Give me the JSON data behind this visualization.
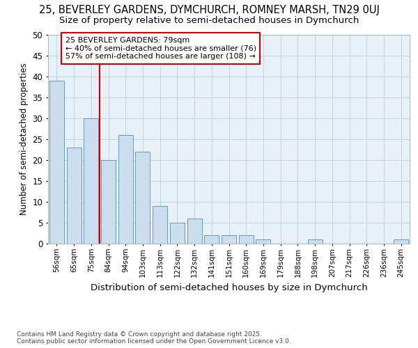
{
  "title1": "25, BEVERLEY GARDENS, DYMCHURCH, ROMNEY MARSH, TN29 0UJ",
  "title2": "Size of property relative to semi-detached houses in Dymchurch",
  "xlabel": "Distribution of semi-detached houses by size in Dymchurch",
  "ylabel": "Number of semi-detached properties",
  "categories": [
    "56sqm",
    "65sqm",
    "75sqm",
    "84sqm",
    "94sqm",
    "103sqm",
    "113sqm",
    "122sqm",
    "132sqm",
    "141sqm",
    "151sqm",
    "160sqm",
    "169sqm",
    "179sqm",
    "188sqm",
    "198sqm",
    "207sqm",
    "217sqm",
    "226sqm",
    "236sqm",
    "245sqm"
  ],
  "values": [
    39,
    23,
    30,
    20,
    26,
    22,
    9,
    5,
    6,
    2,
    2,
    2,
    1,
    0,
    0,
    1,
    0,
    0,
    0,
    0,
    1
  ],
  "bar_color": "#ccdded",
  "bar_edge_color": "#6699bb",
  "property_line_x": 2.5,
  "annotation_text": "25 BEVERLEY GARDENS: 79sqm\n← 40% of semi-detached houses are smaller (76)\n57% of semi-detached houses are larger (108) →",
  "annotation_box_color": "#ffffff",
  "annotation_box_edge": "#cc0000",
  "vline_color": "#cc0000",
  "ylim": [
    0,
    50
  ],
  "yticks": [
    0,
    5,
    10,
    15,
    20,
    25,
    30,
    35,
    40,
    45,
    50
  ],
  "footer": "Contains HM Land Registry data © Crown copyright and database right 2025.\nContains public sector information licensed under the Open Government Licence v3.0.",
  "bg_color": "#e8f0f8",
  "grid_color": "#c8d4e0",
  "title1_fontsize": 10.5,
  "title2_fontsize": 9.5
}
